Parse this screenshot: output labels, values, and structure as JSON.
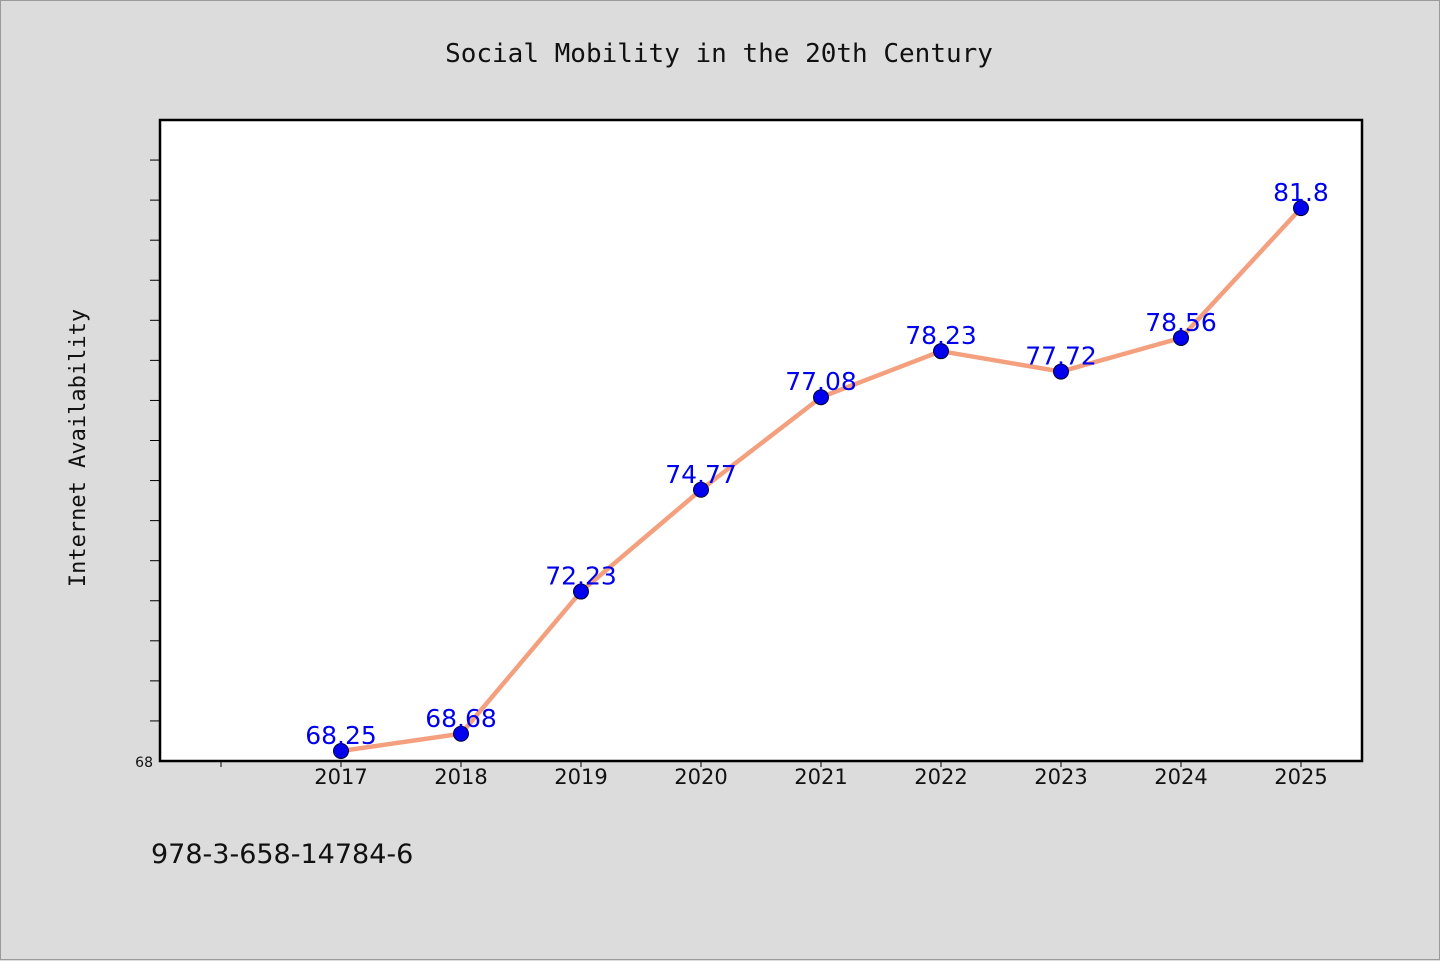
{
  "chart_data": {
    "type": "line",
    "title": "Social Mobility in the 20th Century",
    "xlabel": "",
    "ylabel": "Internet Availability",
    "categories": [
      "2017",
      "2018",
      "2019",
      "2020",
      "2021",
      "2022",
      "2023",
      "2024",
      "2025"
    ],
    "series": [
      {
        "values": [
          68.25,
          68.68,
          72.23,
          74.77,
          77.08,
          78.23,
          77.72,
          78.56,
          81.8
        ],
        "labels": [
          "68.25",
          "68.68",
          "72.23",
          "74.77",
          "77.08",
          "78.23",
          "77.72",
          "78.56",
          "81.8"
        ]
      }
    ],
    "ylim": [
      68,
      84
    ],
    "yticks_labeled": [
      "68"
    ],
    "grid": false,
    "legend": "none",
    "colors": {
      "line": "#f4a07e",
      "marker": "#0000ee",
      "data_label": "#0000ee",
      "background": "#dcdcdc",
      "plot_background": "#ffffff"
    }
  },
  "footer": {
    "isbn": "978-3-658-14784-6"
  }
}
